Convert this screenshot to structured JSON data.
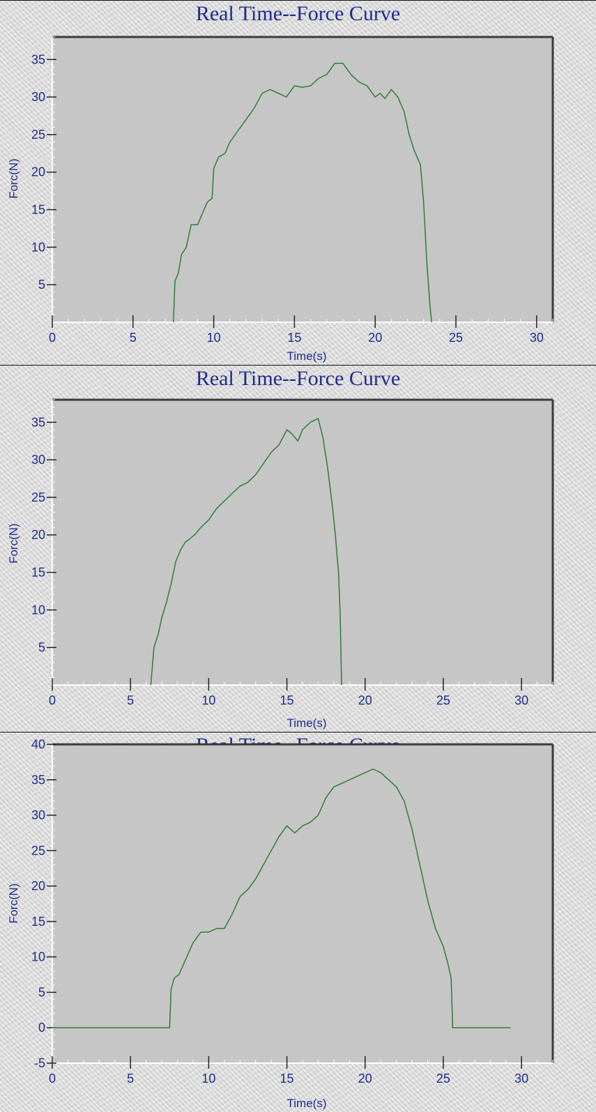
{
  "chart_data": [
    {
      "type": "line",
      "title": "Real Time--Force Curve",
      "xlabel": "Time(s)",
      "ylabel": "Forc(N)",
      "xlim": [
        0,
        31
      ],
      "ylim": [
        0,
        38
      ],
      "xticks": [
        0,
        5,
        10,
        15,
        20,
        25,
        30
      ],
      "yticks": [
        5,
        10,
        15,
        20,
        25,
        30,
        35
      ],
      "color": "#2e7d32",
      "series": [
        {
          "x": [
            7.5,
            7.6,
            7.8,
            8.0,
            8.3,
            8.6,
            9.0,
            9.3,
            9.6,
            9.9,
            10.0,
            10.3,
            10.7,
            11.0,
            11.5,
            12.0,
            12.5,
            13.0,
            13.5,
            14.0,
            14.5,
            15.0,
            15.5,
            16.0,
            16.5,
            17.0,
            17.5,
            18.0,
            18.5,
            19.0,
            19.5,
            20.0,
            20.3,
            20.6,
            21.0,
            21.4,
            21.8,
            22.1,
            22.4,
            22.8,
            23.0,
            23.1,
            23.2,
            23.3,
            23.4,
            23.5
          ],
          "y": [
            0,
            5.5,
            6.5,
            9.0,
            10.0,
            13.0,
            13.0,
            14.5,
            16.0,
            16.5,
            20.5,
            22.0,
            22.5,
            24.0,
            25.5,
            27.0,
            28.5,
            30.5,
            31.0,
            30.5,
            30.0,
            31.5,
            31.3,
            31.5,
            32.5,
            33.0,
            34.5,
            34.5,
            33.0,
            32.0,
            31.5,
            30.0,
            30.5,
            29.8,
            31.0,
            30.0,
            28.0,
            25.0,
            23.0,
            21.0,
            16.0,
            12.0,
            8.0,
            5.0,
            2.0,
            0
          ]
        }
      ]
    },
    {
      "type": "line",
      "title": "Real Time--Force Curve",
      "xlabel": "Time(s)",
      "ylabel": "Forc(N)",
      "xlim": [
        0,
        32
      ],
      "ylim": [
        0,
        38
      ],
      "xticks": [
        0,
        5,
        10,
        15,
        20,
        25,
        30
      ],
      "yticks": [
        5,
        10,
        15,
        20,
        25,
        30,
        35
      ],
      "color": "#2e7d32",
      "series": [
        {
          "x": [
            6.3,
            6.5,
            6.8,
            7.0,
            7.3,
            7.6,
            7.9,
            8.2,
            8.5,
            8.8,
            9.1,
            9.5,
            10.0,
            10.5,
            11.0,
            11.5,
            12.0,
            12.5,
            13.0,
            13.5,
            14.0,
            14.5,
            15.0,
            15.3,
            15.7,
            16.0,
            16.5,
            17.0,
            17.3,
            17.6,
            17.9,
            18.1,
            18.3,
            18.4,
            18.5
          ],
          "y": [
            0,
            5.0,
            7.0,
            9.0,
            11.0,
            13.5,
            16.5,
            18.0,
            19.0,
            19.5,
            20.0,
            21.0,
            22.0,
            23.5,
            24.5,
            25.5,
            26.5,
            27.0,
            28.0,
            29.5,
            31.0,
            32.0,
            34.0,
            33.5,
            32.5,
            34.0,
            35.0,
            35.5,
            33.0,
            29.0,
            24.0,
            20.0,
            15.0,
            10.0,
            0
          ]
        }
      ]
    },
    {
      "type": "line",
      "title": "Real Time--Force Curve",
      "xlabel": "Time(s)",
      "ylabel": "Forc(N)",
      "xlim": [
        0,
        32
      ],
      "ylim": [
        -5,
        40
      ],
      "xticks": [
        0,
        5,
        10,
        15,
        20,
        25,
        30
      ],
      "yticks": [
        -5,
        0,
        5,
        10,
        15,
        20,
        25,
        30,
        35,
        40
      ],
      "color": "#2e7d32",
      "series": [
        {
          "x": [
            0,
            7.5,
            7.6,
            7.8,
            8.1,
            8.4,
            8.7,
            9.0,
            9.5,
            10.0,
            10.5,
            11.0,
            11.5,
            12.0,
            12.5,
            13.0,
            13.5,
            14.0,
            14.5,
            15.0,
            15.5,
            16.0,
            16.5,
            17.0,
            17.5,
            18.0,
            18.5,
            19.0,
            19.5,
            20.0,
            20.5,
            21.0,
            21.5,
            22.0,
            22.5,
            23.0,
            23.5,
            24.0,
            24.5,
            25.0,
            25.3,
            25.5,
            25.6,
            29.3
          ],
          "y": [
            0,
            0,
            5.5,
            7.0,
            7.5,
            9.0,
            10.5,
            12.0,
            13.5,
            13.5,
            14.0,
            14.0,
            16.0,
            18.5,
            19.5,
            21.0,
            23.0,
            25.0,
            27.0,
            28.5,
            27.5,
            28.5,
            29.0,
            30.0,
            32.5,
            34.0,
            34.5,
            35.0,
            35.5,
            36.0,
            36.5,
            36.0,
            35.0,
            34.0,
            32.0,
            28.0,
            23.0,
            18.0,
            14.0,
            11.5,
            9.0,
            7.0,
            0,
            0
          ]
        }
      ]
    }
  ]
}
